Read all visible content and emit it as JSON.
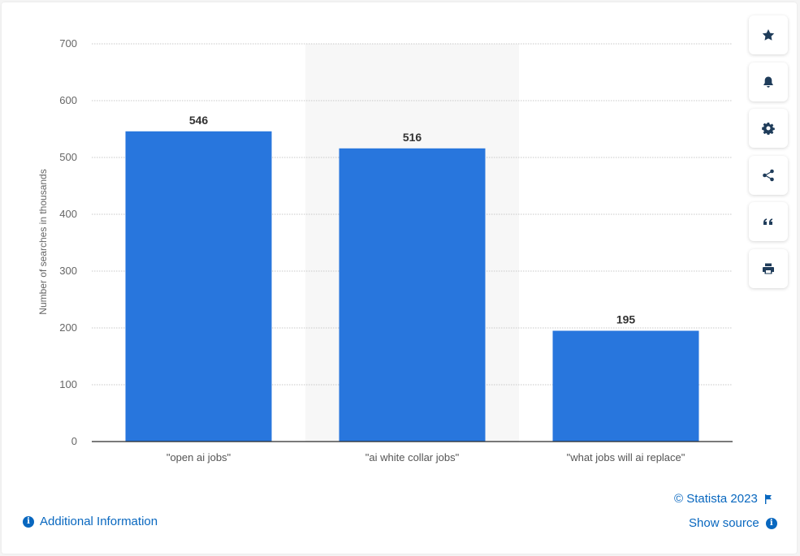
{
  "chart_data": {
    "type": "bar",
    "categories": [
      "\"open ai jobs\"",
      "\"ai white collar jobs\"",
      "\"what jobs will ai replace\""
    ],
    "values": [
      546,
      516,
      195
    ],
    "data_labels": [
      "546",
      "516",
      "195"
    ],
    "ylabel": "Number of searches in thousands",
    "ylim": [
      0,
      700
    ],
    "yticks": [
      "0",
      "100",
      "200",
      "300",
      "400",
      "500",
      "600",
      "700"
    ],
    "grid": true,
    "highlighted_category_index": 1,
    "bar_color": "#2876dd"
  },
  "toolbar": {
    "buttons": [
      {
        "name": "favorite-button",
        "icon": "star-icon"
      },
      {
        "name": "notification-button",
        "icon": "bell-icon"
      },
      {
        "name": "settings-button",
        "icon": "gear-icon"
      },
      {
        "name": "share-button",
        "icon": "share-icon"
      },
      {
        "name": "cite-button",
        "icon": "quote-icon"
      },
      {
        "name": "print-button",
        "icon": "printer-icon"
      }
    ]
  },
  "footer": {
    "copyright": "© Statista 2023",
    "show_source": "Show source",
    "additional_info": "Additional Information"
  },
  "colors": {
    "accent": "#0867bf",
    "bar": "#2876dd",
    "icon": "#1f3c5a"
  }
}
